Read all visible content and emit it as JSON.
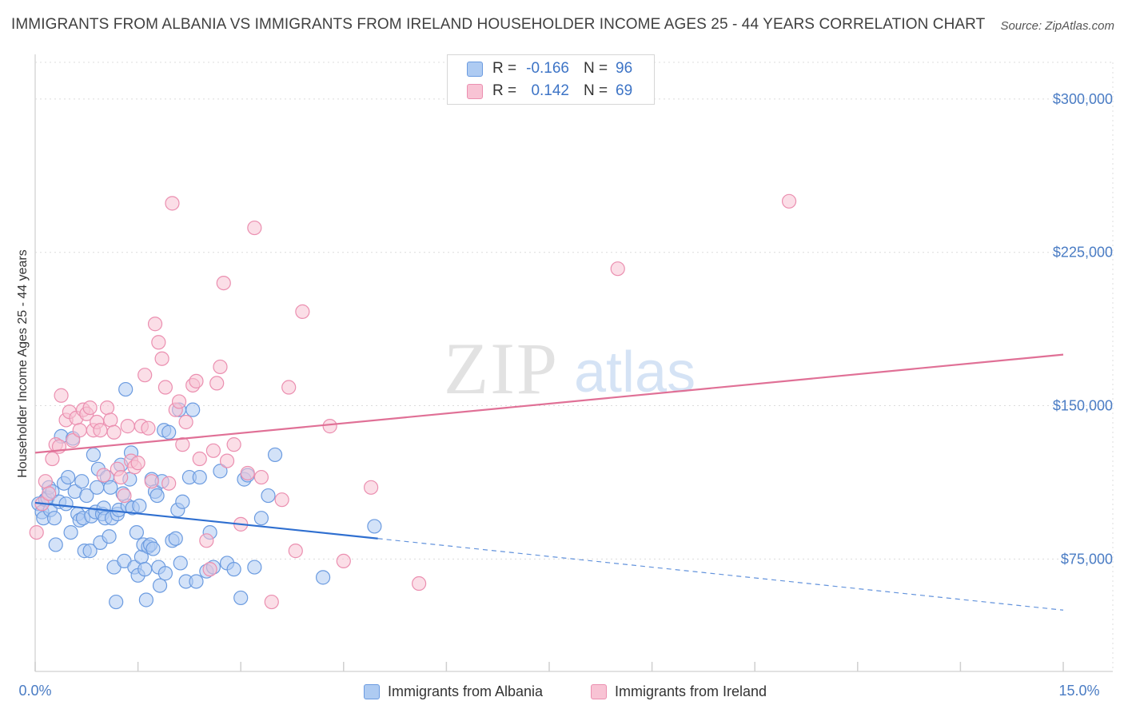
{
  "header": {
    "title": "IMMIGRANTS FROM ALBANIA VS IMMIGRANTS FROM IRELAND HOUSEHOLDER INCOME AGES 25 - 44 YEARS CORRELATION CHART",
    "source": "Source: ZipAtlas.com"
  },
  "legend": {
    "r_label": "R =",
    "n_label": "N =",
    "albania": {
      "r": "-0.166",
      "n": "96"
    },
    "ireland": {
      "r": "0.142",
      "n": "69"
    }
  },
  "watermark": {
    "zip": "ZIP",
    "atlas": "atlas"
  },
  "colors": {
    "albania_fill": "#aecbf2",
    "albania_stroke": "#6b9be0",
    "albania_line": "#2f6fd0",
    "ireland_fill": "#f8c3d4",
    "ireland_stroke": "#eb8fb0",
    "ireland_line": "#e07096",
    "tick_label": "#4a7cc4",
    "grid": "#dcdcdc"
  },
  "chart_data": {
    "type": "scatter",
    "title": "IMMIGRANTS FROM ALBANIA VS IMMIGRANTS FROM IRELAND HOUSEHOLDER INCOME AGES 25 - 44 YEARS CORRELATION CHART",
    "xlabel": "",
    "ylabel": "Householder Income Ages 25 - 44 years",
    "xlim": [
      0,
      15
    ],
    "ylim": [
      20000,
      325000
    ],
    "x_tick_labels": {
      "min": "0.0%",
      "max": "15.0%"
    },
    "y_ticks": [
      {
        "value": 75000,
        "label": "$75,000"
      },
      {
        "value": 150000,
        "label": "$150,000"
      },
      {
        "value": 225000,
        "label": "$225,000"
      },
      {
        "value": 300000,
        "label": "$300,000"
      }
    ],
    "series": [
      {
        "name": "Immigrants from Albania",
        "r": -0.166,
        "n": 96,
        "trend": {
          "x0": 0,
          "y0": 102500,
          "x1": 5.0,
          "y1": 85000,
          "x_dash_end": 15.0,
          "y_dash_end": 50000
        },
        "points": [
          [
            0.05,
            102000
          ],
          [
            0.1,
            98000
          ],
          [
            0.12,
            95000
          ],
          [
            0.15,
            104000
          ],
          [
            0.18,
            105000
          ],
          [
            0.2,
            110000
          ],
          [
            0.22,
            99000
          ],
          [
            0.25,
            108000
          ],
          [
            0.28,
            95000
          ],
          [
            0.3,
            82000
          ],
          [
            0.35,
            103000
          ],
          [
            0.38,
            135000
          ],
          [
            0.42,
            112000
          ],
          [
            0.45,
            102000
          ],
          [
            0.48,
            115000
          ],
          [
            0.52,
            88000
          ],
          [
            0.55,
            134000
          ],
          [
            0.58,
            108000
          ],
          [
            0.62,
            97000
          ],
          [
            0.65,
            94000
          ],
          [
            0.68,
            113000
          ],
          [
            0.7,
            95000
          ],
          [
            0.72,
            79000
          ],
          [
            0.75,
            106000
          ],
          [
            0.8,
            79000
          ],
          [
            0.82,
            96000
          ],
          [
            0.85,
            126000
          ],
          [
            0.88,
            98000
          ],
          [
            0.9,
            110000
          ],
          [
            0.92,
            119000
          ],
          [
            0.95,
            83000
          ],
          [
            0.98,
            97000
          ],
          [
            1.0,
            100000
          ],
          [
            1.02,
            95000
          ],
          [
            1.05,
            115000
          ],
          [
            1.08,
            86000
          ],
          [
            1.1,
            110000
          ],
          [
            1.12,
            95000
          ],
          [
            1.15,
            71000
          ],
          [
            1.18,
            54000
          ],
          [
            1.2,
            97000
          ],
          [
            1.22,
            99000
          ],
          [
            1.25,
            121000
          ],
          [
            1.28,
            107000
          ],
          [
            1.3,
            74000
          ],
          [
            1.32,
            158000
          ],
          [
            1.35,
            101000
          ],
          [
            1.38,
            114000
          ],
          [
            1.4,
            127000
          ],
          [
            1.42,
            100000
          ],
          [
            1.45,
            71000
          ],
          [
            1.48,
            88000
          ],
          [
            1.5,
            67000
          ],
          [
            1.52,
            101000
          ],
          [
            1.55,
            76000
          ],
          [
            1.58,
            82000
          ],
          [
            1.6,
            70000
          ],
          [
            1.62,
            55000
          ],
          [
            1.65,
            81000
          ],
          [
            1.68,
            82000
          ],
          [
            1.7,
            114000
          ],
          [
            1.72,
            80000
          ],
          [
            1.75,
            108000
          ],
          [
            1.78,
            106000
          ],
          [
            1.8,
            71000
          ],
          [
            1.82,
            62000
          ],
          [
            1.85,
            113000
          ],
          [
            1.88,
            138000
          ],
          [
            1.9,
            68000
          ],
          [
            1.95,
            137000
          ],
          [
            2.0,
            84000
          ],
          [
            2.05,
            85000
          ],
          [
            2.08,
            99000
          ],
          [
            2.1,
            148000
          ],
          [
            2.12,
            73000
          ],
          [
            2.15,
            103000
          ],
          [
            2.2,
            64000
          ],
          [
            2.25,
            115000
          ],
          [
            2.3,
            148000
          ],
          [
            2.35,
            64000
          ],
          [
            2.4,
            115000
          ],
          [
            2.5,
            69000
          ],
          [
            2.55,
            88000
          ],
          [
            2.6,
            71000
          ],
          [
            2.7,
            118000
          ],
          [
            2.8,
            73000
          ],
          [
            2.9,
            70000
          ],
          [
            3.0,
            56000
          ],
          [
            3.05,
            114000
          ],
          [
            3.1,
            116000
          ],
          [
            3.2,
            71000
          ],
          [
            3.3,
            95000
          ],
          [
            3.4,
            106000
          ],
          [
            3.5,
            126000
          ],
          [
            4.2,
            66000
          ],
          [
            4.95,
            91000
          ]
        ]
      },
      {
        "name": "Immigrants from Ireland",
        "r": 0.142,
        "n": 69,
        "trend": {
          "x0": 0,
          "y0": 127000,
          "x1": 15.0,
          "y1": 175000
        },
        "points": [
          [
            0.02,
            88000
          ],
          [
            0.1,
            102000
          ],
          [
            0.15,
            113000
          ],
          [
            0.2,
            107000
          ],
          [
            0.25,
            124000
          ],
          [
            0.3,
            131000
          ],
          [
            0.35,
            130000
          ],
          [
            0.38,
            155000
          ],
          [
            0.45,
            143000
          ],
          [
            0.5,
            147000
          ],
          [
            0.55,
            133000
          ],
          [
            0.6,
            144000
          ],
          [
            0.65,
            138000
          ],
          [
            0.7,
            148000
          ],
          [
            0.75,
            146000
          ],
          [
            0.8,
            149000
          ],
          [
            0.85,
            138000
          ],
          [
            0.9,
            142000
          ],
          [
            0.95,
            138000
          ],
          [
            1.0,
            116000
          ],
          [
            1.05,
            149000
          ],
          [
            1.1,
            143000
          ],
          [
            1.15,
            137000
          ],
          [
            1.2,
            119000
          ],
          [
            1.25,
            115000
          ],
          [
            1.3,
            106000
          ],
          [
            1.35,
            140000
          ],
          [
            1.4,
            123000
          ],
          [
            1.45,
            120000
          ],
          [
            1.5,
            122000
          ],
          [
            1.55,
            140000
          ],
          [
            1.6,
            165000
          ],
          [
            1.65,
            139000
          ],
          [
            1.7,
            113000
          ],
          [
            1.75,
            190000
          ],
          [
            1.8,
            181000
          ],
          [
            1.85,
            173000
          ],
          [
            1.9,
            159000
          ],
          [
            1.95,
            112000
          ],
          [
            2.0,
            249000
          ],
          [
            2.05,
            148000
          ],
          [
            2.1,
            152000
          ],
          [
            2.15,
            131000
          ],
          [
            2.2,
            142000
          ],
          [
            2.3,
            160000
          ],
          [
            2.35,
            162000
          ],
          [
            2.4,
            124000
          ],
          [
            2.5,
            84000
          ],
          [
            2.55,
            70000
          ],
          [
            2.6,
            128000
          ],
          [
            2.65,
            161000
          ],
          [
            2.7,
            169000
          ],
          [
            2.75,
            210000
          ],
          [
            2.8,
            123000
          ],
          [
            2.9,
            131000
          ],
          [
            3.0,
            92000
          ],
          [
            3.1,
            117000
          ],
          [
            3.2,
            237000
          ],
          [
            3.3,
            115000
          ],
          [
            3.45,
            54000
          ],
          [
            3.6,
            104000
          ],
          [
            3.7,
            159000
          ],
          [
            3.8,
            79000
          ],
          [
            3.9,
            196000
          ],
          [
            4.3,
            140000
          ],
          [
            4.5,
            74000
          ],
          [
            4.9,
            110000
          ],
          [
            5.6,
            63000
          ],
          [
            8.5,
            217000
          ],
          [
            11.0,
            250000
          ]
        ]
      }
    ],
    "legend_labels": [
      "Immigrants from Albania",
      "Immigrants from Ireland"
    ]
  }
}
